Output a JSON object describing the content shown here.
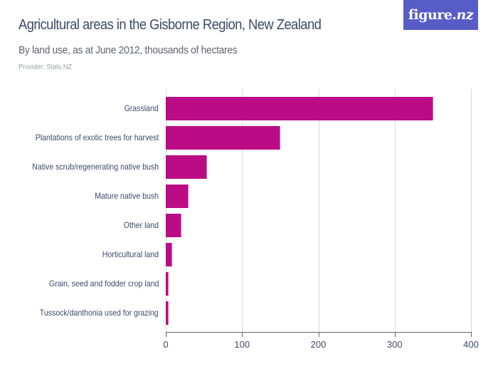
{
  "header": {
    "title": "Agricultural areas in the Gisborne Region, New Zealand",
    "subtitle": "By land use, as at June 2012, thousands of hectares",
    "provider": "Provider: Stats NZ",
    "logo_text": "figure.",
    "logo_text_italic": "nz"
  },
  "colors": {
    "bar": "#bb0c85",
    "logo_bg": "#575cc7",
    "title": "#3e4a66"
  },
  "chart_data": {
    "type": "bar",
    "orientation": "horizontal",
    "title": "Agricultural areas in the Gisborne Region, New Zealand",
    "subtitle": "By land use, as at June 2012, thousands of hectares",
    "xlabel": "",
    "ylabel": "",
    "categories": [
      "Grassland",
      "Plantations of exotic trees for harvest",
      "Native scrub/regenerating native bush",
      "Mature native bush",
      "Other land",
      "Horticultural land",
      "Grain, seed and fodder crop land",
      "Tussock/danthonia used for grazing"
    ],
    "values": [
      351,
      150,
      54,
      30,
      20.5,
      8.6,
      4,
      3.4
    ],
    "xlim": [
      0,
      400
    ],
    "xticks": [
      "0",
      "100",
      "200",
      "300",
      "400"
    ],
    "grid": true,
    "legend": "none"
  }
}
